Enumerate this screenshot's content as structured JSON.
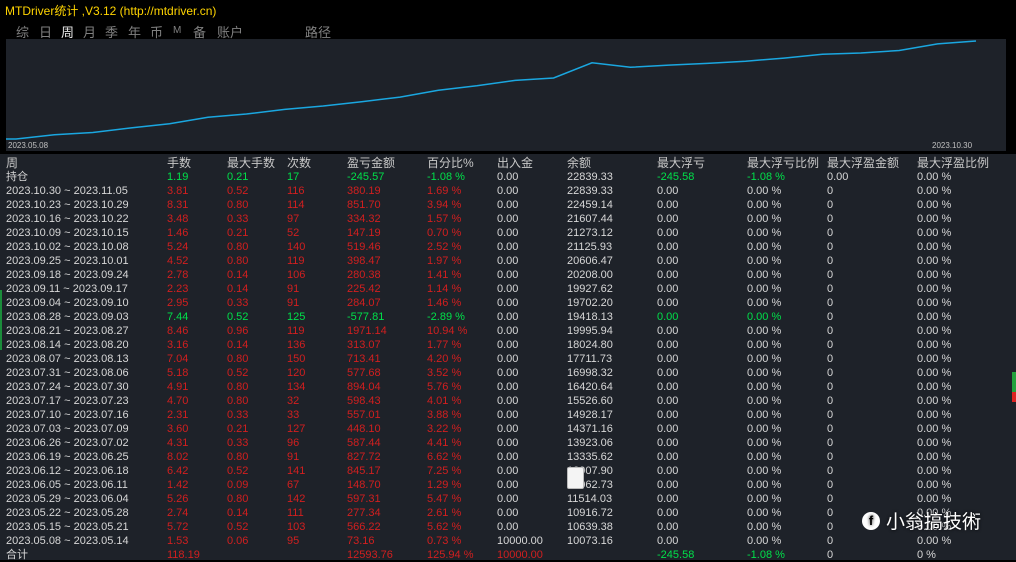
{
  "title": "MTDriver统计 ,V3.12 (http://mtdriver.cn)",
  "tabs": [
    "综",
    "日",
    "周",
    "月",
    "季",
    "年",
    "币",
    "M",
    "备",
    "账户",
    "路径"
  ],
  "active_tab": "周",
  "chart": {
    "start_label": "2023.05.08",
    "end_label": "2023.10.30",
    "line_color": "#1aa7e0",
    "balance_series": [
      10073.16,
      10639.38,
      10916.72,
      11514.03,
      12062.73,
      12907.9,
      13335.62,
      13923.06,
      14371.16,
      14928.17,
      15526.6,
      16420.64,
      16998.32,
      17711.73,
      18024.8,
      19995.94,
      19418.13,
      19702.2,
      19927.62,
      20208.0,
      20606.47,
      21125.93,
      21273.12,
      21607.44,
      22459.14,
      22839.33
    ]
  },
  "table": {
    "headers": [
      "周",
      "手数",
      "最大手数",
      "次数",
      "盈亏金额",
      "百分比%",
      "出入金",
      "余额",
      "最大浮亏",
      "最大浮亏比例",
      "最大浮盈金额",
      "最大浮盈比例"
    ],
    "rows": [
      {
        "color": "g",
        "cells": [
          "持仓",
          "1.19",
          "0.21",
          "17",
          "-245.57",
          "-1.08 %",
          "0.00",
          "22839.33",
          "-245.58",
          "-1.08 %",
          "0.00",
          "0.00 %"
        ]
      },
      {
        "color": "r",
        "cells": [
          "2023.10.30 ~ 2023.11.05",
          "3.81",
          "0.52",
          "116",
          "380.19",
          "1.69 %",
          "0.00",
          "22839.33",
          "0.00",
          "0.00 %",
          "0",
          "0.00 %"
        ]
      },
      {
        "color": "r",
        "cells": [
          "2023.10.23 ~ 2023.10.29",
          "8.31",
          "0.80",
          "114",
          "851.70",
          "3.94 %",
          "0.00",
          "22459.14",
          "0.00",
          "0.00 %",
          "0",
          "0.00 %"
        ]
      },
      {
        "color": "r",
        "cells": [
          "2023.10.16 ~ 2023.10.22",
          "3.48",
          "0.33",
          "97",
          "334.32",
          "1.57 %",
          "0.00",
          "21607.44",
          "0.00",
          "0.00 %",
          "0",
          "0.00 %"
        ]
      },
      {
        "color": "r",
        "cells": [
          "2023.10.09 ~ 2023.10.15",
          "1.46",
          "0.21",
          "52",
          "147.19",
          "0.70 %",
          "0.00",
          "21273.12",
          "0.00",
          "0.00 %",
          "0",
          "0.00 %"
        ]
      },
      {
        "color": "r",
        "cells": [
          "2023.10.02 ~ 2023.10.08",
          "5.24",
          "0.80",
          "140",
          "519.46",
          "2.52 %",
          "0.00",
          "21125.93",
          "0.00",
          "0.00 %",
          "0",
          "0.00 %"
        ]
      },
      {
        "color": "r",
        "cells": [
          "2023.09.25 ~ 2023.10.01",
          "4.52",
          "0.80",
          "119",
          "398.47",
          "1.97 %",
          "0.00",
          "20606.47",
          "0.00",
          "0.00 %",
          "0",
          "0.00 %"
        ]
      },
      {
        "color": "r",
        "cells": [
          "2023.09.18 ~ 2023.09.24",
          "2.78",
          "0.14",
          "106",
          "280.38",
          "1.41 %",
          "0.00",
          "20208.00",
          "0.00",
          "0.00 %",
          "0",
          "0.00 %"
        ]
      },
      {
        "color": "r",
        "cells": [
          "2023.09.11 ~ 2023.09.17",
          "2.23",
          "0.14",
          "91",
          "225.42",
          "1.14 %",
          "0.00",
          "19927.62",
          "0.00",
          "0.00 %",
          "0",
          "0.00 %"
        ]
      },
      {
        "color": "r",
        "cells": [
          "2023.09.04 ~ 2023.09.10",
          "2.95",
          "0.33",
          "91",
          "284.07",
          "1.46 %",
          "0.00",
          "19702.20",
          "0.00",
          "0.00 %",
          "0",
          "0.00 %"
        ]
      },
      {
        "color": "g",
        "cells": [
          "2023.08.28 ~ 2023.09.03",
          "7.44",
          "0.52",
          "125",
          "-577.81",
          "-2.89 %",
          "0.00",
          "19418.13",
          "0.00",
          "0.00 %",
          "0",
          "0.00 %"
        ]
      },
      {
        "color": "r",
        "cells": [
          "2023.08.21 ~ 2023.08.27",
          "8.46",
          "0.96",
          "119",
          "1971.14",
          "10.94 %",
          "0.00",
          "19995.94",
          "0.00",
          "0.00 %",
          "0",
          "0.00 %"
        ]
      },
      {
        "color": "r",
        "cells": [
          "2023.08.14 ~ 2023.08.20",
          "3.16",
          "0.14",
          "136",
          "313.07",
          "1.77 %",
          "0.00",
          "18024.80",
          "0.00",
          "0.00 %",
          "0",
          "0.00 %"
        ]
      },
      {
        "color": "r",
        "cells": [
          "2023.08.07 ~ 2023.08.13",
          "7.04",
          "0.80",
          "150",
          "713.41",
          "4.20 %",
          "0.00",
          "17711.73",
          "0.00",
          "0.00 %",
          "0",
          "0.00 %"
        ]
      },
      {
        "color": "r",
        "cells": [
          "2023.07.31 ~ 2023.08.06",
          "5.18",
          "0.52",
          "120",
          "577.68",
          "3.52 %",
          "0.00",
          "16998.32",
          "0.00",
          "0.00 %",
          "0",
          "0.00 %"
        ]
      },
      {
        "color": "r",
        "cells": [
          "2023.07.24 ~ 2023.07.30",
          "4.91",
          "0.80",
          "134",
          "894.04",
          "5.76 %",
          "0.00",
          "16420.64",
          "0.00",
          "0.00 %",
          "0",
          "0.00 %"
        ]
      },
      {
        "color": "r",
        "cells": [
          "2023.07.17 ~ 2023.07.23",
          "4.70",
          "0.80",
          "32",
          "598.43",
          "4.01 %",
          "0.00",
          "15526.60",
          "0.00",
          "0.00 %",
          "0",
          "0.00 %"
        ]
      },
      {
        "color": "r",
        "cells": [
          "2023.07.10 ~ 2023.07.16",
          "2.31",
          "0.33",
          "33",
          "557.01",
          "3.88 %",
          "0.00",
          "14928.17",
          "0.00",
          "0.00 %",
          "0",
          "0.00 %"
        ]
      },
      {
        "color": "r",
        "cells": [
          "2023.07.03 ~ 2023.07.09",
          "3.60",
          "0.21",
          "127",
          "448.10",
          "3.22 %",
          "0.00",
          "14371.16",
          "0.00",
          "0.00 %",
          "0",
          "0.00 %"
        ]
      },
      {
        "color": "r",
        "cells": [
          "2023.06.26 ~ 2023.07.02",
          "4.31",
          "0.33",
          "96",
          "587.44",
          "4.41 %",
          "0.00",
          "13923.06",
          "0.00",
          "0.00 %",
          "0",
          "0.00 %"
        ]
      },
      {
        "color": "r",
        "cells": [
          "2023.06.19 ~ 2023.06.25",
          "8.02",
          "0.80",
          "91",
          "827.72",
          "6.62 %",
          "0.00",
          "13335.62",
          "0.00",
          "0.00 %",
          "0",
          "0.00 %"
        ]
      },
      {
        "color": "r",
        "cells": [
          "2023.06.12 ~ 2023.06.18",
          "6.42",
          "0.52",
          "141",
          "845.17",
          "7.25 %",
          "0.00",
          "12907.90",
          "0.00",
          "0.00 %",
          "0",
          "0.00 %"
        ]
      },
      {
        "color": "r",
        "cells": [
          "2023.06.05 ~ 2023.06.11",
          "1.42",
          "0.09",
          "67",
          "148.70",
          "1.29 %",
          "0.00",
          "12062.73",
          "0.00",
          "0.00 %",
          "0",
          "0.00 %"
        ]
      },
      {
        "color": "r",
        "cells": [
          "2023.05.29 ~ 2023.06.04",
          "5.26",
          "0.80",
          "142",
          "597.31",
          "5.47 %",
          "0.00",
          "11514.03",
          "0.00",
          "0.00 %",
          "0",
          "0.00 %"
        ]
      },
      {
        "color": "r",
        "cells": [
          "2023.05.22 ~ 2023.05.28",
          "2.74",
          "0.14",
          "111",
          "277.34",
          "2.61 %",
          "0.00",
          "10916.72",
          "0.00",
          "0.00 %",
          "0",
          "0.00 %"
        ]
      },
      {
        "color": "r",
        "cells": [
          "2023.05.15 ~ 2023.05.21",
          "5.72",
          "0.52",
          "103",
          "566.22",
          "5.62 %",
          "0.00",
          "10639.38",
          "0.00",
          "0.00 %",
          "0",
          "0.00 %"
        ]
      },
      {
        "color": "r",
        "cells": [
          "2023.05.08 ~ 2023.05.14",
          "1.53",
          "0.06",
          "95",
          "73.16",
          "0.73 %",
          "10000.00",
          "10073.16",
          "0.00",
          "0.00 %",
          "0",
          "0.00 %"
        ]
      }
    ],
    "total": {
      "cells": [
        "合计",
        "118.19",
        "",
        "",
        "12593.76",
        "125.94 %",
        "10000.00",
        "",
        "-245.58",
        "-1.08 %",
        "0",
        "0 %"
      ]
    }
  },
  "watermark": {
    "logo": "f",
    "text": "小翁搞技術"
  }
}
